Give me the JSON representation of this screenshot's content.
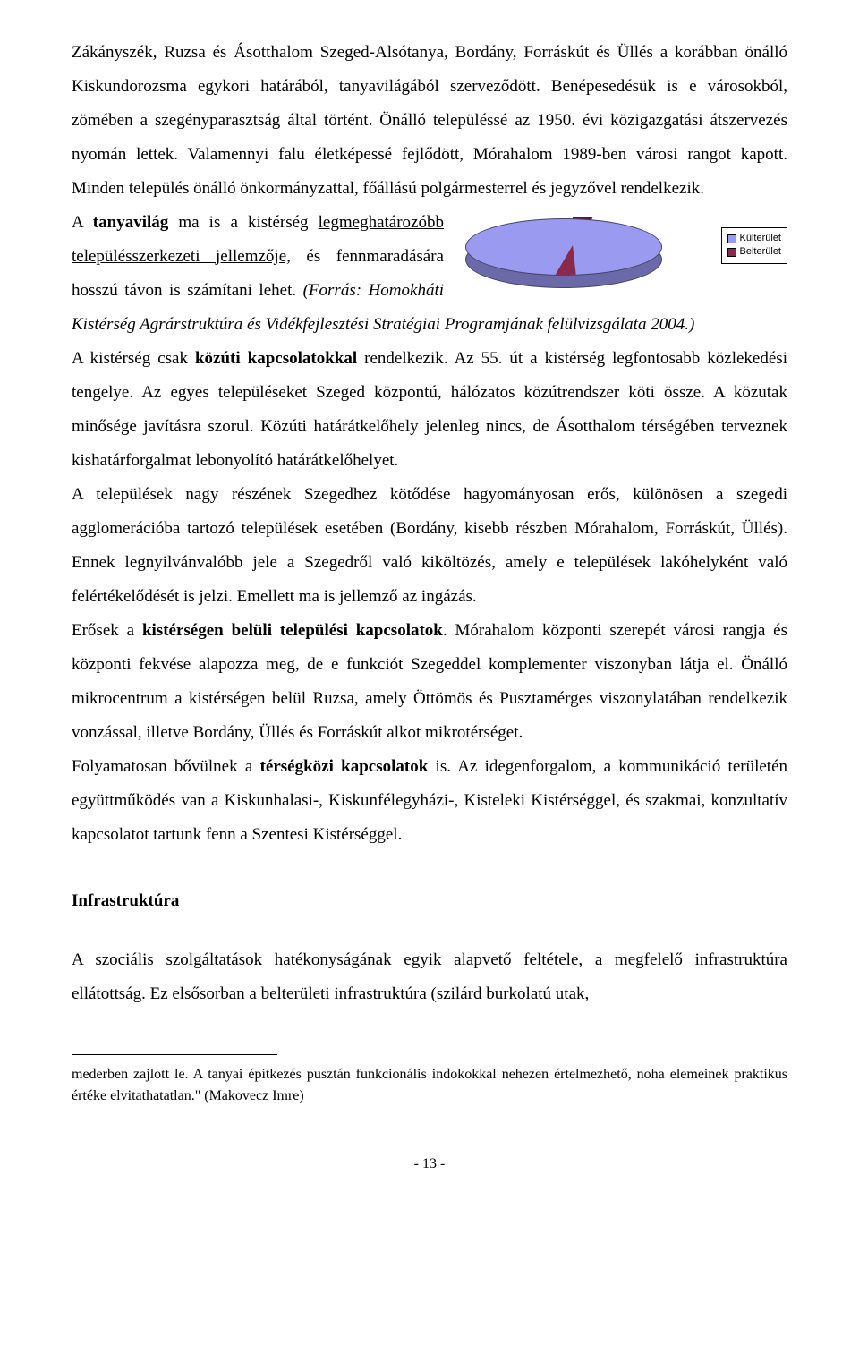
{
  "paragraphs": {
    "p1_part1": "Zákányszék, Ruzsa és Ásotthalom Szeged-Alsótanya, Bordány, Forráskút és Üllés a korábban önálló Kiskundorozsma egykori határából, tanyavilágából szerveződött. Benépesedésük is e városokból, zömében a szegényparasztság által történt. Önálló településsé az 1950. évi közigazgatási átszervezés nyomán lettek. Valamennyi falu életképessé fejlődött, Mórahalom 1989-ben városi rangot kapott. Minden település önálló önkormányzattal, főállású polgármesterrel és jegyzővel rendelkezik.",
    "p2_lead_a": "A ",
    "p2_lead_bold": "tanyavilág",
    "p2_lead_b": " ma is a kistérség ",
    "p2_line2": "legmeghatározóbb településszerkezeti ",
    "p2_line3": "jellemzője,",
    "p2_line3b": " és fennmaradására hosszú ",
    "p2_line4a": "távon is számítani lehet. ",
    "p2_line4b": "(Forrás: ",
    "p2_line5": "Homokháti Kistérség Agrárstruktúra ",
    "p2_line6": "és Vidékfejlesztési Stratégiai Programjának felülvizsgálata  2004.)",
    "p3_a": "A kistérség csak ",
    "p3_bold": "közúti kapcsolatokkal",
    "p3_b": " rendelkezik. Az 55. út a kistérség legfontosabb közlekedési tengelye. Az egyes településeket Szeged központú, hálózatos közútrendszer köti össze. A közutak minősége javításra szorul. Közúti határátkelőhely jelenleg nincs, de Ásotthalom térségében terveznek kishatárforgalmat lebonyolító határátkelőhelyet.",
    "p4": "A települések nagy részének Szegedhez kötődése hagyományosan erős, különösen a szegedi agglomerációba tartozó települések esetében (Bordány, kisebb részben Mórahalom, Forráskút, Üllés). Ennek legnyilvánvalóbb jele a Szegedről való kiköltözés, amely e települések lakóhelyként való felértékelődését is jelzi. Emellett ma is jellemző az ingázás.",
    "p5_a": "Erősek a ",
    "p5_bold": "kistérségen belüli települési kapcsolatok",
    "p5_b": ". Mórahalom központi szerepét városi rangja és központi fekvése alapozza meg, de e funkciót Szegeddel komplementer viszonyban látja el. Önálló mikrocentrum a kistérségen belül Ruzsa, amely Öttömös és Pusztamérges viszonylatában rendelkezik vonzással, illetve Bordány, Üllés és Forráskút alkot mikrotérséget.",
    "p6_a": "Folyamatosan bővülnek a ",
    "p6_bold": "térségközi kapcsolatok",
    "p6_b": " is. Az idegenforgalom, a kommunikáció területén együttműködés van a Kiskunhalasi-, Kiskunfélegyházi-, Kisteleki Kistérséggel, és szakmai, konzultatív kapcsolatot tartunk fenn a Szentesi Kistérséggel."
  },
  "heading": "Infrastruktúra",
  "infra_para": "A szociális szolgáltatások hatékonyságának egyik alapvető feltétele, a megfelelő infrastruktúra ellátottság. Ez elsősorban a belterületi infrastruktúra (szilárd burkolatú utak,",
  "footnote": "mederben zajlott le. A tanyai építkezés pusztán funkcionális indokokkal nehezen értelmezhető, noha elemeinek praktikus értéke elvitathatatlan.\" (Makovecz Imre)",
  "page_number": "- 13 -",
  "chart": {
    "type": "pie",
    "series": [
      {
        "label": "Külterület",
        "value": 94,
        "color": "#9a9af0"
      },
      {
        "label": "Belterület",
        "value": 6,
        "color": "#8a2a4a"
      }
    ],
    "background_color": "#ffffff",
    "border_color": "#000000",
    "legend_position": "right",
    "legend_fontsize": 11,
    "aspect": "3d-flat",
    "slice_border_color": "#444466",
    "depth_color": "#6a6aa8"
  }
}
